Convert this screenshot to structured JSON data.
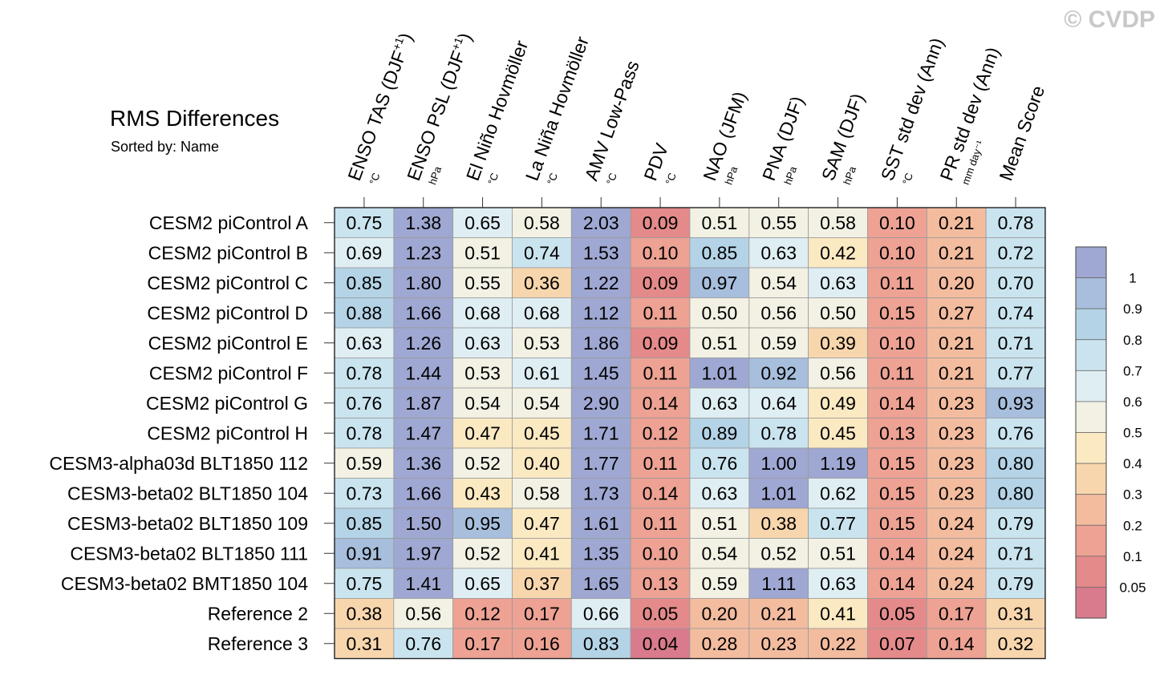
{
  "watermark": "© CVDP",
  "chart_data": {
    "type": "heatmap",
    "title": "RMS Differences",
    "subtitle": "Sorted by: Name",
    "columns": [
      {
        "label": "ENSO TAS (DJF",
        "sup": "+1",
        "close": ")",
        "unit": "°C"
      },
      {
        "label": "ENSO PSL (DJF",
        "sup": "+1",
        "close": ")",
        "unit": "hPa"
      },
      {
        "label": "El Niño Hovmöller",
        "sup": "",
        "close": "",
        "unit": "°C"
      },
      {
        "label": "La Niña Hovmöller",
        "sup": "",
        "close": "",
        "unit": "°C"
      },
      {
        "label": "AMV Low-Pass",
        "sup": "",
        "close": "",
        "unit": "°C"
      },
      {
        "label": "PDV",
        "sup": "",
        "close": "",
        "unit": "°C"
      },
      {
        "label": "NAO (JFM)",
        "sup": "",
        "close": "",
        "unit": "hPa"
      },
      {
        "label": "PNA (DJF)",
        "sup": "",
        "close": "",
        "unit": "hPa"
      },
      {
        "label": "SAM (DJF)",
        "sup": "",
        "close": "",
        "unit": "hPa"
      },
      {
        "label": "SST std dev (Ann)",
        "sup": "",
        "close": "",
        "unit": "°C"
      },
      {
        "label": "PR std dev (Ann)",
        "sup": "",
        "close": "",
        "unit": "mm day⁻¹"
      },
      {
        "label": "Mean Score",
        "sup": "",
        "close": "",
        "unit": ""
      }
    ],
    "rows": [
      "CESM2 piControl A",
      "CESM2 piControl B",
      "CESM2 piControl C",
      "CESM2 piControl D",
      "CESM2 piControl E",
      "CESM2 piControl F",
      "CESM2 piControl G",
      "CESM2 piControl H",
      "CESM3-alpha03d BLT1850 112",
      "CESM3-beta02 BLT1850 104",
      "CESM3-beta02 BLT1850 109",
      "CESM3-beta02 BLT1850 111",
      "CESM3-beta02 BMT1850 104",
      "Reference 2",
      "Reference 3"
    ],
    "values": [
      [
        "0.75",
        "1.38",
        "0.65",
        "0.58",
        "2.03",
        "0.09",
        "0.51",
        "0.55",
        "0.58",
        "0.10",
        "0.21",
        "0.78"
      ],
      [
        "0.69",
        "1.23",
        "0.51",
        "0.74",
        "1.53",
        "0.10",
        "0.85",
        "0.63",
        "0.42",
        "0.10",
        "0.21",
        "0.72"
      ],
      [
        "0.85",
        "1.80",
        "0.55",
        "0.36",
        "1.22",
        "0.09",
        "0.97",
        "0.54",
        "0.63",
        "0.11",
        "0.20",
        "0.70"
      ],
      [
        "0.88",
        "1.66",
        "0.68",
        "0.68",
        "1.12",
        "0.11",
        "0.50",
        "0.56",
        "0.50",
        "0.15",
        "0.27",
        "0.74"
      ],
      [
        "0.63",
        "1.26",
        "0.63",
        "0.53",
        "1.86",
        "0.09",
        "0.51",
        "0.59",
        "0.39",
        "0.10",
        "0.21",
        "0.71"
      ],
      [
        "0.78",
        "1.44",
        "0.53",
        "0.61",
        "1.45",
        "0.11",
        "1.01",
        "0.92",
        "0.56",
        "0.11",
        "0.21",
        "0.77"
      ],
      [
        "0.76",
        "1.87",
        "0.54",
        "0.54",
        "2.90",
        "0.14",
        "0.63",
        "0.64",
        "0.49",
        "0.14",
        "0.23",
        "0.93"
      ],
      [
        "0.78",
        "1.47",
        "0.47",
        "0.45",
        "1.71",
        "0.12",
        "0.89",
        "0.78",
        "0.45",
        "0.13",
        "0.23",
        "0.76"
      ],
      [
        "0.59",
        "1.36",
        "0.52",
        "0.40",
        "1.77",
        "0.11",
        "0.76",
        "1.00",
        "1.19",
        "0.15",
        "0.23",
        "0.80"
      ],
      [
        "0.73",
        "1.66",
        "0.43",
        "0.58",
        "1.73",
        "0.14",
        "0.63",
        "1.01",
        "0.62",
        "0.15",
        "0.23",
        "0.80"
      ],
      [
        "0.85",
        "1.50",
        "0.95",
        "0.47",
        "1.61",
        "0.11",
        "0.51",
        "0.38",
        "0.77",
        "0.15",
        "0.24",
        "0.79"
      ],
      [
        "0.91",
        "1.97",
        "0.52",
        "0.41",
        "1.35",
        "0.10",
        "0.54",
        "0.52",
        "0.51",
        "0.14",
        "0.24",
        "0.71"
      ],
      [
        "0.75",
        "1.41",
        "0.65",
        "0.37",
        "1.65",
        "0.13",
        "0.59",
        "1.11",
        "0.63",
        "0.14",
        "0.24",
        "0.79"
      ],
      [
        "0.38",
        "0.56",
        "0.12",
        "0.17",
        "0.66",
        "0.05",
        "0.20",
        "0.21",
        "0.41",
        "0.05",
        "0.17",
        "0.31"
      ],
      [
        "0.31",
        "0.76",
        "0.17",
        "0.16",
        "0.83",
        "0.04",
        "0.28",
        "0.23",
        "0.22",
        "0.07",
        "0.14",
        "0.32"
      ]
    ],
    "colorbar": {
      "levels": [
        "1",
        "0.9",
        "0.8",
        "0.7",
        "0.6",
        "0.5",
        "0.4",
        "0.3",
        "0.2",
        "0.1",
        "0.05"
      ],
      "thresholds": [
        0.05,
        0.1,
        0.2,
        0.3,
        0.4,
        0.5,
        0.6,
        0.7,
        0.8,
        0.9,
        1.0
      ],
      "colors": [
        "#d97b8c",
        "#e48a8a",
        "#eda294",
        "#f3bc9f",
        "#f8d6ad",
        "#fbe9c2",
        "#f2f1e4",
        "#dfeef3",
        "#cae4ef",
        "#b4d3e6",
        "#a7bedc",
        "#9fa8d2"
      ]
    }
  }
}
